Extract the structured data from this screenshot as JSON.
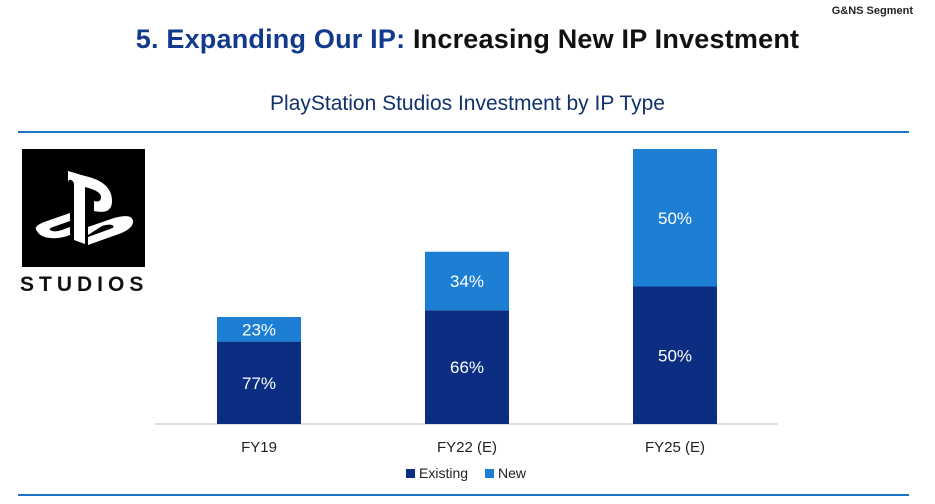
{
  "header": {
    "segment_label": "G&NS Segment",
    "title_number": "5. Expanding Our IP:",
    "title_rest": "Increasing New IP Investment"
  },
  "logo": {
    "text": "STUDIOS"
  },
  "chart_data": {
    "type": "bar",
    "stacked": true,
    "title": "PlayStation Studios Investment by IP Type",
    "categories": [
      "FY19",
      "FY22 (E)",
      "FY25 (E)"
    ],
    "series": [
      {
        "name": "Existing",
        "values": [
          77,
          66,
          50
        ],
        "labels": [
          "77%",
          "66%",
          "50%"
        ],
        "color": "#0c2e82"
      },
      {
        "name": "New",
        "values": [
          23,
          34,
          50
        ],
        "labels": [
          "23%",
          "34%",
          "50%"
        ],
        "color": "#1d7fd4"
      }
    ],
    "relative_total_heights": [
      1.0,
      1.61,
      2.57
    ],
    "legend_placement": "bottom-center",
    "grid": false,
    "value_label_color": "#ffffff"
  }
}
